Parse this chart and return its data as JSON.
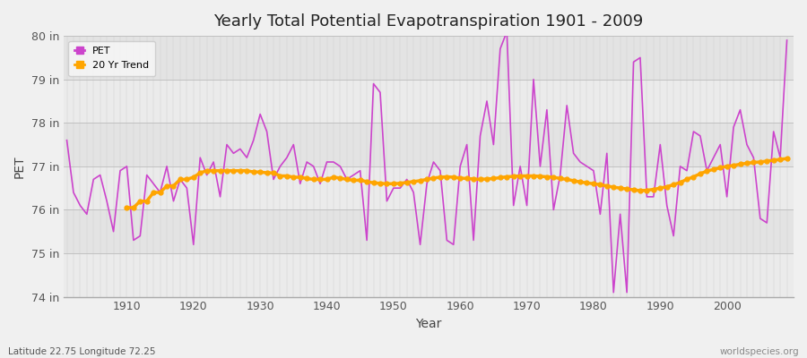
{
  "title": "Yearly Total Potential Evapotranspiration 1901 - 2009",
  "xlabel": "Year",
  "ylabel": "PET",
  "start_year": 1901,
  "end_year": 2009,
  "ylim": [
    74,
    80
  ],
  "yticks": [
    74,
    75,
    76,
    77,
    78,
    79,
    80
  ],
  "ytick_labels": [
    "74 in",
    "75 in",
    "76 in",
    "77 in",
    "78 in",
    "79 in",
    "80 in"
  ],
  "pet_color": "#cc44cc",
  "trend_color": "#FFA500",
  "pet_linewidth": 1.2,
  "trend_linewidth": 2.5,
  "bg_color": "#f0f0f0",
  "plot_bg_color": "#e8e8e8",
  "grid_color": "#ffffff",
  "legend_labels": [
    "PET",
    "20 Yr Trend"
  ],
  "footer_left": "Latitude 22.75 Longitude 72.25",
  "footer_right": "worldspecies.org",
  "pet_values": [
    77.6,
    76.4,
    76.1,
    75.9,
    76.7,
    76.8,
    76.2,
    75.5,
    76.9,
    77.0,
    75.3,
    75.4,
    76.8,
    76.6,
    76.4,
    77.0,
    76.2,
    76.7,
    76.5,
    75.2,
    77.2,
    76.8,
    77.1,
    76.3,
    77.5,
    77.3,
    77.4,
    77.2,
    77.6,
    78.2,
    77.8,
    76.7,
    77.0,
    77.2,
    77.5,
    76.6,
    77.1,
    77.0,
    76.6,
    77.1,
    77.1,
    77.0,
    76.7,
    76.8,
    76.9,
    75.3,
    78.9,
    78.7,
    76.2,
    76.5,
    76.5,
    76.7,
    76.4,
    75.2,
    76.6,
    77.1,
    76.9,
    75.3,
    75.2,
    77.0,
    77.5,
    75.3,
    77.7,
    78.5,
    77.5,
    79.7,
    80.1,
    76.1,
    77.0,
    76.1,
    79.0,
    77.0,
    78.3,
    76.0,
    76.8,
    78.4,
    77.3,
    77.1,
    77.0,
    76.9,
    75.9,
    77.3,
    74.1,
    75.9,
    74.1,
    79.4,
    79.5,
    76.3,
    76.3,
    77.5,
    76.1,
    75.4,
    77.0,
    76.9,
    77.8,
    77.7,
    76.9,
    77.2,
    77.5,
    76.3,
    77.9,
    78.3,
    77.5,
    77.2,
    75.8,
    75.7,
    77.8,
    77.2,
    79.9
  ],
  "trend_values": [
    null,
    null,
    null,
    null,
    null,
    null,
    null,
    null,
    null,
    76.05,
    76.05,
    76.2,
    76.2,
    76.4,
    76.4,
    76.55,
    76.55,
    76.7,
    76.7,
    76.75,
    76.85,
    76.9,
    76.9,
    76.9,
    76.9,
    76.9,
    76.9,
    76.9,
    76.87,
    76.87,
    76.85,
    76.85,
    76.78,
    76.78,
    76.75,
    76.75,
    76.72,
    76.7,
    76.7,
    76.7,
    76.75,
    76.73,
    76.7,
    76.68,
    76.68,
    76.65,
    76.62,
    76.61,
    76.6,
    76.6,
    76.61,
    76.63,
    76.65,
    76.67,
    76.7,
    76.73,
    76.75,
    76.76,
    76.75,
    76.73,
    76.72,
    76.71,
    76.7,
    76.71,
    76.72,
    76.74,
    76.76,
    76.77,
    76.78,
    76.78,
    76.78,
    76.77,
    76.76,
    76.75,
    76.72,
    76.7,
    76.67,
    76.64,
    76.62,
    76.6,
    76.58,
    76.55,
    76.52,
    76.5,
    76.48,
    76.46,
    76.44,
    76.45,
    76.47,
    76.5,
    76.53,
    76.58,
    76.63,
    76.7,
    76.76,
    76.83,
    76.89,
    76.93,
    76.97,
    77.0,
    77.02,
    77.05,
    77.07,
    77.09,
    77.1,
    77.12,
    77.14,
    77.16,
    77.18
  ]
}
